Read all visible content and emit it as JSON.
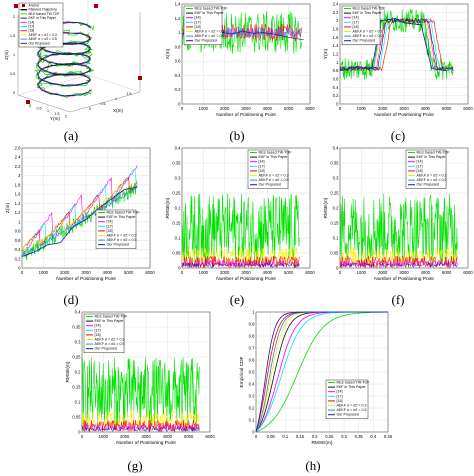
{
  "colors": {
    "mle": "#00e000",
    "ekf": "#111111",
    "r14": "#ff00ff",
    "r17": "#00e5ff",
    "r18": "#ff0000",
    "aekf1": "#ffee00",
    "aekf2": "#2a7fff",
    "ours": "#1a1aa0",
    "grid": "#d8d8d8"
  },
  "legend_3d": [
    "Anchor",
    "Planned Trajectory",
    "MLE based TW-TOF",
    "EKF in This Paper",
    "[14]",
    "[17]",
    "[18]",
    "AEKF σ = σ2 = 0.3",
    "AEKF σ = σ2 = 0.5",
    "Our Proposed"
  ],
  "legend_std": [
    "MLE based TW-TOF",
    "EKF in This Paper",
    "[14]",
    "[17]",
    "[18]",
    "AEKF σ = σ2 = 0.3",
    "AEKF σ = σ2 = 0.5",
    "Our Proposed"
  ],
  "panels": [
    {
      "caption": "(a)",
      "xlabel": "Y(m)",
      "xlabel2": "X(m)",
      "ylabel": "Z(m)"
    },
    {
      "caption": "(b)",
      "xlabel": "Number of Positioning Point",
      "ylabel": "X(m)"
    },
    {
      "caption": "(c)",
      "xlabel": "Number of Positioning Point",
      "ylabel": "Y(m)"
    },
    {
      "caption": "(d)",
      "xlabel": "Number of Positioning Point",
      "ylabel": "Z(m)"
    },
    {
      "caption": "(e)",
      "xlabel": "Number of Positioning Point",
      "ylabel": "RMSE(m)"
    },
    {
      "caption": "(f)",
      "xlabel": "Number of Positioning Point",
      "ylabel": "RMSE(m)"
    },
    {
      "caption": "(g)",
      "xlabel": "Number of Positioning Point",
      "ylabel": "RMSE(m)"
    },
    {
      "caption": "(h)",
      "xlabel": "RMSE(m)",
      "ylabel": "Empirical CDF"
    }
  ],
  "chart_data": [
    {
      "id": "b",
      "type": "line",
      "x_ticks": [
        "0",
        "1000",
        "2000",
        "3000",
        "4000",
        "5000",
        "6000"
      ],
      "y_ticks": [
        "0",
        "0.2",
        "0.4",
        "0.6",
        "0.8",
        "1",
        "1.2",
        "1.4"
      ],
      "xlim": [
        0,
        6000
      ],
      "ylim": [
        0,
        1.4
      ],
      "series": [
        {
          "name": "MLE based TW-TOF",
          "y": [
            0.95,
            1.05,
            0.9,
            1.1,
            1.0,
            0.92,
            1.08,
            0.97,
            1.02,
            0.95,
            1.0,
            1.05,
            0.98
          ]
        },
        {
          "name": "Our Proposed",
          "y": [
            0.98,
            1.0,
            0.99,
            1.01,
            1.0,
            0.98,
            1.02,
            0.99,
            1.0,
            0.98,
            0.95,
            0.92,
            0.9
          ]
        }
      ]
    },
    {
      "id": "c",
      "type": "line",
      "x_ticks": [
        "0",
        "1000",
        "2000",
        "3000",
        "4000",
        "5000",
        "6000"
      ],
      "y_ticks": [
        "0",
        "0.2",
        "0.4",
        "0.6",
        "0.8",
        "1",
        "1.2",
        "1.4",
        "1.6",
        "1.8",
        "2",
        "2.2",
        "2.4"
      ],
      "xlim": [
        0,
        6000
      ],
      "ylim": [
        0,
        2.4
      ],
      "series": [
        {
          "name": "Our Proposed",
          "x": [
            0,
            800,
            1500,
            1900,
            2600,
            3000,
            3800,
            4300,
            5000
          ],
          "y": [
            0.8,
            0.9,
            0.85,
            2.0,
            2.05,
            1.95,
            1.9,
            0.85,
            0.8
          ]
        }
      ]
    },
    {
      "id": "d",
      "type": "line",
      "x_ticks": [
        "0",
        "1000",
        "2000",
        "3000",
        "4000",
        "5000",
        "6000"
      ],
      "y_ticks": [
        "0",
        "0.2",
        "0.4",
        "0.6",
        "0.8",
        "1",
        "1.2",
        "1.4",
        "1.6",
        "1.8",
        "2",
        "2.2",
        "2.4",
        "2.6"
      ],
      "xlim": [
        0,
        6000
      ],
      "ylim": [
        0,
        2.6
      ],
      "series": [
        {
          "name": "Our Proposed",
          "x": [
            0,
            600,
            1200,
            1800,
            2400,
            3000,
            3600,
            4200,
            4800,
            5400
          ],
          "y": [
            0.25,
            0.35,
            0.5,
            0.55,
            0.9,
            1.05,
            1.3,
            1.5,
            1.7,
            1.75
          ]
        }
      ]
    },
    {
      "id": "e",
      "type": "line",
      "x_ticks": [
        "0",
        "1000",
        "2000",
        "3000",
        "4000",
        "5000",
        "6000"
      ],
      "y_ticks": [
        "0",
        "0.05",
        "0.1",
        "0.15",
        "0.2",
        "0.25",
        "0.3",
        "0.35",
        "0.4"
      ],
      "xlim": [
        0,
        6000
      ],
      "ylim": [
        0,
        0.4
      ],
      "series": []
    },
    {
      "id": "f",
      "type": "line",
      "x_ticks": [
        "0",
        "1000",
        "2000",
        "3000",
        "4000",
        "5000",
        "6000"
      ],
      "y_ticks": [
        "0",
        "0.05",
        "0.1",
        "0.15",
        "0.2",
        "0.25",
        "0.3",
        "0.35",
        "0.4"
      ],
      "xlim": [
        0,
        6000
      ],
      "ylim": [
        0,
        0.4
      ],
      "series": []
    },
    {
      "id": "g",
      "type": "line",
      "x_ticks": [
        "0",
        "1000",
        "2000",
        "3000",
        "4000",
        "5000",
        "6000"
      ],
      "y_ticks": [
        "0",
        "0.05",
        "0.1",
        "0.15",
        "0.2",
        "0.25",
        "0.3",
        "0.35",
        "0.4"
      ],
      "xlim": [
        0,
        6000
      ],
      "ylim": [
        0,
        0.4
      ],
      "series": []
    },
    {
      "id": "h",
      "type": "line",
      "x_ticks": [
        "0",
        "0.05",
        "0.1",
        "0.15",
        "0.2",
        "0.25",
        "0.3",
        "0.35",
        "0.4",
        "0.45"
      ],
      "y_ticks": [
        "0",
        "0.1",
        "0.2",
        "0.3",
        "0.4",
        "0.5",
        "0.6",
        "0.7",
        "0.8",
        "0.9",
        "1"
      ],
      "xlim": [
        0,
        0.45
      ],
      "ylim": [
        0,
        1
      ],
      "series": [
        {
          "name": "MLE based TW-TOF",
          "x": [
            0,
            0.05,
            0.1,
            0.15,
            0.2,
            0.25,
            0.3
          ],
          "y": [
            0,
            0.1,
            0.4,
            0.75,
            0.93,
            0.99,
            1
          ]
        },
        {
          "name": "[18]",
          "x": [
            0,
            0.02,
            0.05,
            0.08,
            0.1,
            0.15
          ],
          "y": [
            0,
            0.5,
            0.85,
            0.97,
            0.99,
            1
          ]
        },
        {
          "name": "Our Proposed",
          "x": [
            0,
            0.02,
            0.04,
            0.06,
            0.08,
            0.12
          ],
          "y": [
            0,
            0.55,
            0.88,
            0.97,
            0.99,
            1
          ]
        }
      ]
    }
  ]
}
